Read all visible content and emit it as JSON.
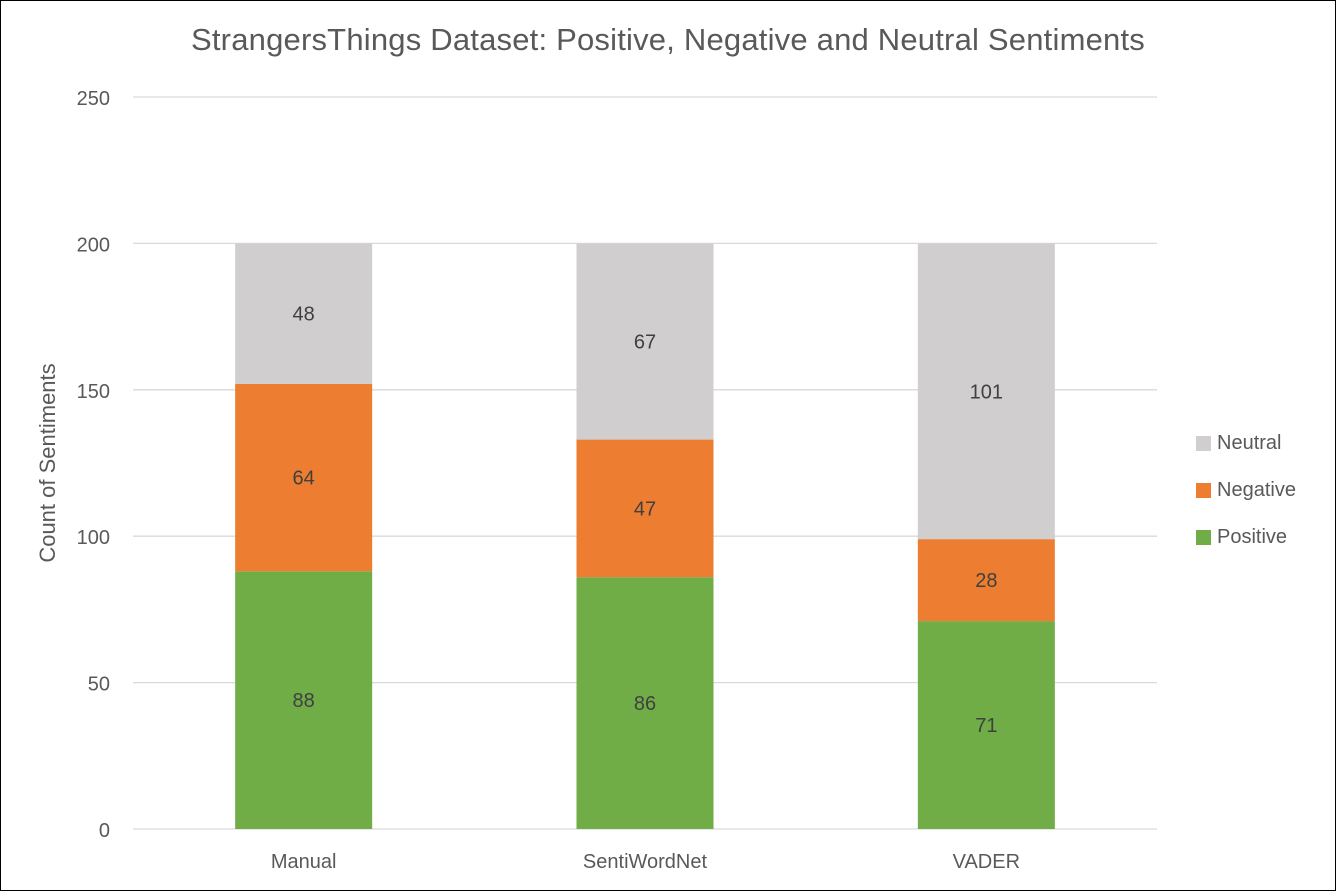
{
  "chart_data": {
    "type": "bar",
    "stacked": true,
    "title": "StrangersThings Dataset: Positive, Negative and Neutral Sentiments",
    "xlabel": "",
    "ylabel": "Count of Sentiments",
    "ylim": [
      0,
      250
    ],
    "yticks": [
      "0",
      "50",
      "100",
      "150",
      "200",
      "250"
    ],
    "grid": true,
    "legend_position": "right",
    "categories": [
      "Manual",
      "SentiWordNet",
      "VADER"
    ],
    "series": [
      {
        "name": "Positive",
        "color": "#70ad47",
        "values": [
          88,
          86,
          71
        ]
      },
      {
        "name": "Negative",
        "color": "#ed7d31",
        "values": [
          64,
          47,
          28
        ]
      },
      {
        "name": "Neutral",
        "color": "#d0cece",
        "values": [
          48,
          67,
          101
        ]
      }
    ],
    "legend_order": [
      "Neutral",
      "Negative",
      "Positive"
    ]
  }
}
